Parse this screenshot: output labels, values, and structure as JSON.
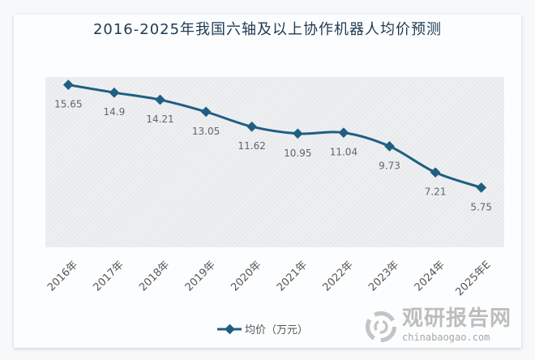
{
  "chart_data": {
    "type": "line",
    "title": "2016-2025年我国六轴及以上协作机器人均价预测",
    "categories": [
      "2016年",
      "2017年",
      "2018年",
      "2019年",
      "2020年",
      "2021年",
      "2022年",
      "2023年",
      "2024年",
      "2025年E"
    ],
    "series": [
      {
        "name": "均价（万元）",
        "values": [
          15.65,
          14.9,
          14.21,
          13.05,
          11.62,
          10.95,
          11.04,
          9.73,
          7.21,
          5.75
        ]
      }
    ],
    "data_labels": [
      "15.65",
      "14.9",
      "14.21",
      "13.05",
      "11.62",
      "10.95",
      "11.04",
      "9.73",
      "7.21",
      "5.75"
    ],
    "ylim": [
      0,
      16.4
    ],
    "grid": false,
    "smooth": true,
    "legend_position": "bottom",
    "colors": {
      "line": "#1f5f82",
      "marker": "#1f5f82",
      "plot_bg": "#eeeff1"
    }
  },
  "watermark": {
    "cn": "观研报告网",
    "en": "chinabaogao.com"
  }
}
